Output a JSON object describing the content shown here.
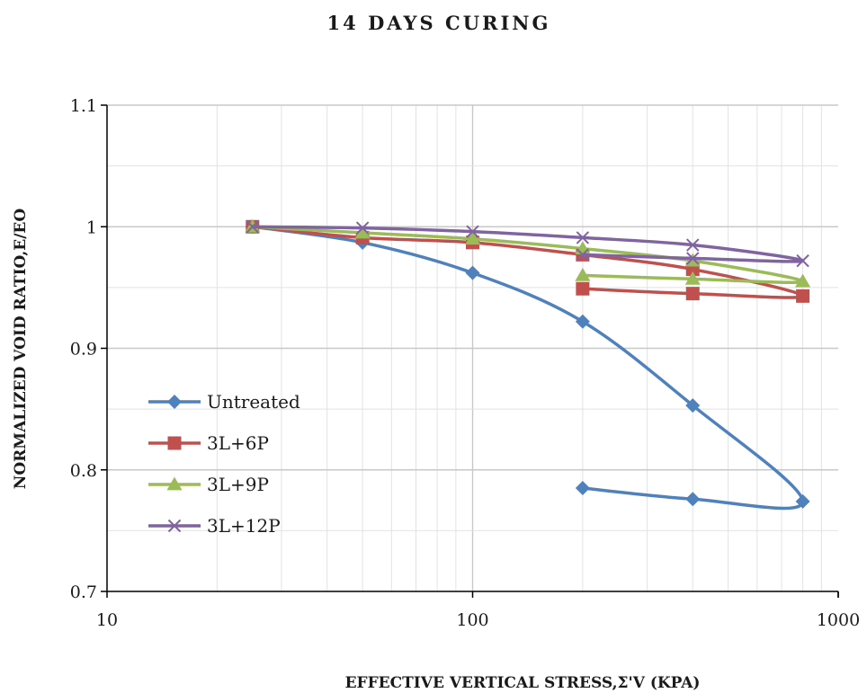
{
  "chart_data": {
    "type": "scatter",
    "title": "14 DAYS CURING",
    "xlabel": "EFFECTIVE VERTICAL STRESS,Σ'V (KPA)",
    "ylabel": "NORMALIZED VOID RATIO,E/EO",
    "xscale": "log",
    "xlim": [
      10,
      1000
    ],
    "ylim": [
      0.7,
      1.1
    ],
    "xticks": [
      "10",
      "100",
      "1000"
    ],
    "yticks": [
      "0.7",
      "0.8",
      "0.9",
      "1",
      "1.1"
    ],
    "grid": true,
    "legend_position": "left-middle",
    "series": [
      {
        "name": "Untreated",
        "color": "#4F81BD",
        "marker": "diamond",
        "points": [
          [
            25,
            1.0
          ],
          [
            50,
            0.987
          ],
          [
            100,
            0.962
          ],
          [
            200,
            0.922
          ],
          [
            400,
            0.853
          ],
          [
            800,
            0.774
          ],
          [
            400,
            0.776
          ],
          [
            200,
            0.785
          ]
        ]
      },
      {
        "name": "3L+6P",
        "color": "#C0504D",
        "marker": "square",
        "points": [
          [
            25,
            1.0
          ],
          [
            50,
            0.991
          ],
          [
            100,
            0.987
          ],
          [
            200,
            0.977
          ],
          [
            400,
            0.965
          ],
          [
            800,
            0.943
          ],
          [
            400,
            0.945
          ],
          [
            200,
            0.949
          ]
        ]
      },
      {
        "name": "3L+9P",
        "color": "#9BBB59",
        "marker": "triangle",
        "points": [
          [
            25,
            1.0
          ],
          [
            50,
            0.995
          ],
          [
            100,
            0.99
          ],
          [
            200,
            0.982
          ],
          [
            400,
            0.972
          ],
          [
            800,
            0.955
          ],
          [
            400,
            0.957
          ],
          [
            200,
            0.96
          ]
        ]
      },
      {
        "name": "3L+12P",
        "color": "#8064A2",
        "marker": "x",
        "points": [
          [
            25,
            1.0
          ],
          [
            50,
            0.999
          ],
          [
            100,
            0.996
          ],
          [
            200,
            0.991
          ],
          [
            400,
            0.985
          ],
          [
            800,
            0.972
          ],
          [
            400,
            0.974
          ],
          [
            200,
            0.977
          ]
        ]
      }
    ]
  }
}
